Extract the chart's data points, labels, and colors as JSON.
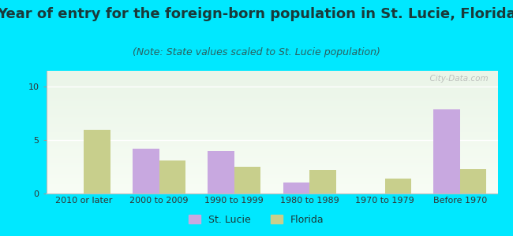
{
  "title": "Year of entry for the foreign-born population in St. Lucie, Florida",
  "subtitle": "(Note: State values scaled to St. Lucie population)",
  "categories": [
    "2010 or later",
    "2000 to 2009",
    "1990 to 1999",
    "1980 to 1989",
    "1970 to 1979",
    "Before 1970"
  ],
  "st_lucie": [
    0,
    4.2,
    4.0,
    1.0,
    0,
    7.9
  ],
  "florida": [
    6.0,
    3.1,
    2.5,
    2.2,
    1.4,
    2.3
  ],
  "st_lucie_color": "#c8a8e0",
  "florida_color": "#c8cf8c",
  "background_color": "#00e8ff",
  "plot_bg_top": "#eaf5e8",
  "plot_bg_bottom": "#f8fdf5",
  "ylim": [
    0,
    11.5
  ],
  "yticks": [
    0,
    5,
    10
  ],
  "bar_width": 0.35,
  "title_fontsize": 13,
  "subtitle_fontsize": 9,
  "tick_fontsize": 8,
  "legend_labels": [
    "St. Lucie",
    "Florida"
  ],
  "title_color": "#1a3a3a",
  "subtitle_color": "#2a6060",
  "watermark": "  City-Data.com"
}
